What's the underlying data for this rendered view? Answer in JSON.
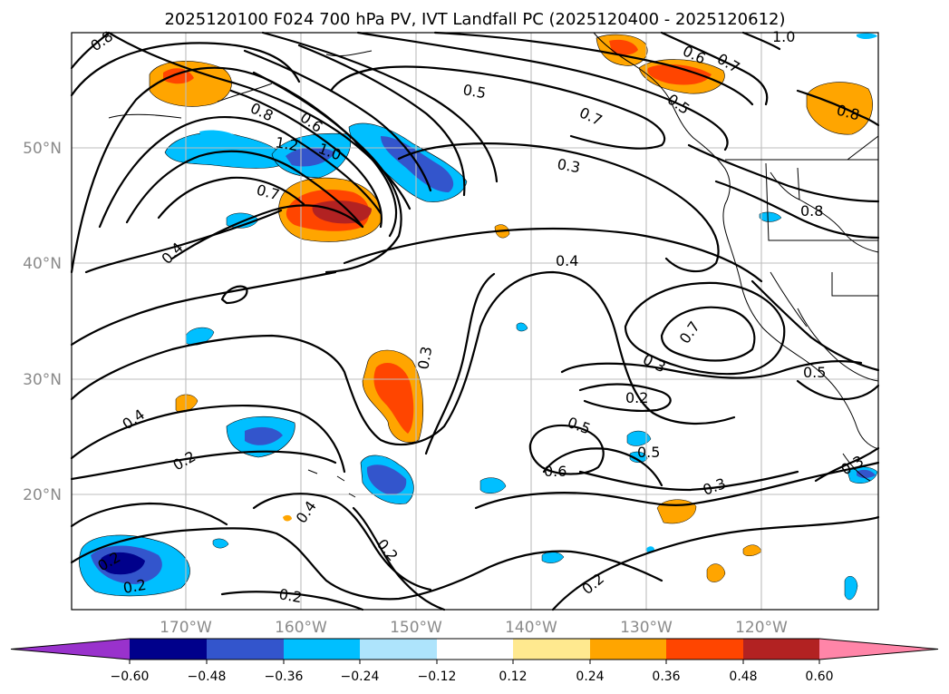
{
  "title": "2025120100 F024 700 hPa PV, IVT Landfall PC (2025120400 - 2025120612)",
  "map": {
    "lat_labels": [
      "50°N",
      "40°N",
      "30°N",
      "20°N"
    ],
    "lon_labels": [
      "170°W",
      "160°W",
      "150°W",
      "140°W",
      "130°W",
      "120°W"
    ]
  },
  "contour_labels": [
    "0.8",
    "0.8",
    "0.6",
    "1.2",
    "1.0",
    "0.7",
    "0.4",
    "0.5",
    "0.7",
    "0.6",
    "0.7",
    "1.0",
    "0.5",
    "0.3",
    "0.8",
    "0.8",
    "0.4",
    "0.3",
    "0.7",
    "0.3",
    "0.2",
    "0.5",
    "0.6",
    "0.5",
    "0.5",
    "0.4",
    "0.2",
    "0.4",
    "0.2",
    "0.2",
    "0.2",
    "0.2",
    "0.3",
    "0.3",
    "0.2"
  ],
  "colorbar": {
    "ticks": [
      "−0.60",
      "−0.48",
      "−0.36",
      "−0.24",
      "−0.12",
      "0.12",
      "0.24",
      "0.36",
      "0.48",
      "0.60"
    ],
    "colors": [
      "#9932cc",
      "#00008b",
      "#3355cc",
      "#00bfff",
      "#aee4fc",
      "#ffffff",
      "#ffe98f",
      "#ffa500",
      "#ff4500",
      "#b22222",
      "#ff85a8"
    ]
  }
}
